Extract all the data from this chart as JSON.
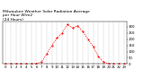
{
  "title": "Milwaukee Weather Solar Radiation Average\nper Hour W/m2\n(24 Hours)",
  "hours": [
    0,
    1,
    2,
    3,
    4,
    5,
    6,
    7,
    8,
    9,
    10,
    11,
    12,
    13,
    14,
    15,
    16,
    17,
    18,
    19,
    20,
    21,
    22,
    23
  ],
  "values": [
    0,
    0,
    0,
    0,
    0,
    0,
    2,
    18,
    80,
    150,
    210,
    250,
    320,
    290,
    310,
    260,
    200,
    140,
    60,
    15,
    2,
    0,
    0,
    0
  ],
  "line_color": "#ff0000",
  "bg_color": "#ffffff",
  "ylim": [
    0,
    340
  ],
  "xlim": [
    -0.5,
    23.5
  ],
  "grid_color": "#888888",
  "title_fontsize": 3.2,
  "tick_fontsize": 2.8,
  "ylabel_values": [
    0,
    50,
    100,
    150,
    200,
    250,
    300
  ]
}
